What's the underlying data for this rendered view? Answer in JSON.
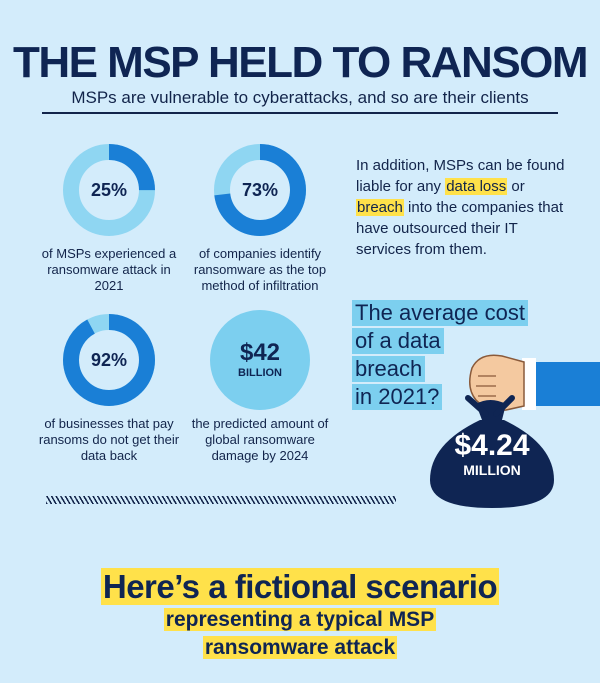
{
  "header": {
    "title": "THE MSP HELD TO RANSOM",
    "subtitle": "MSPs are vulnerable to cyberattacks, and so are their clients"
  },
  "stats": [
    {
      "pct": "25%",
      "fraction": 0.25,
      "caption": "of MSPs experienced a ransomware attack in 2021"
    },
    {
      "pct": "73%",
      "fraction": 0.73,
      "caption": "of companies identify ransomware as the top method of infiltration"
    },
    {
      "pct": "92%",
      "fraction": 0.92,
      "caption": "of businesses that pay ransoms do not get their data back"
    },
    {
      "big": "$42",
      "small": "BILLION",
      "caption": "the predicted amount of global ransomware damage by 2024"
    }
  ],
  "side_text": {
    "part1": "In addition, MSPs can be found liable for any ",
    "hl1": "data loss",
    "part2": " or ",
    "hl2": "breach",
    "part3": " into the companies that have outsourced their IT services from them."
  },
  "cost": {
    "lines": [
      "The average cost",
      "of a data",
      "breach",
      "in 2021?"
    ],
    "amount": "$4.24",
    "unit": "MILLION"
  },
  "scenario": {
    "line1": "Here’s a fictional scenario",
    "line2": "representing a typical MSP",
    "line3": "ransomware attack"
  },
  "colors": {
    "background": "#d3ecfb",
    "navy": "#0f2553",
    "ring_light": "#8fd6f2",
    "ring_dark": "#1a7fd6",
    "highlight": "#ffe14a"
  }
}
